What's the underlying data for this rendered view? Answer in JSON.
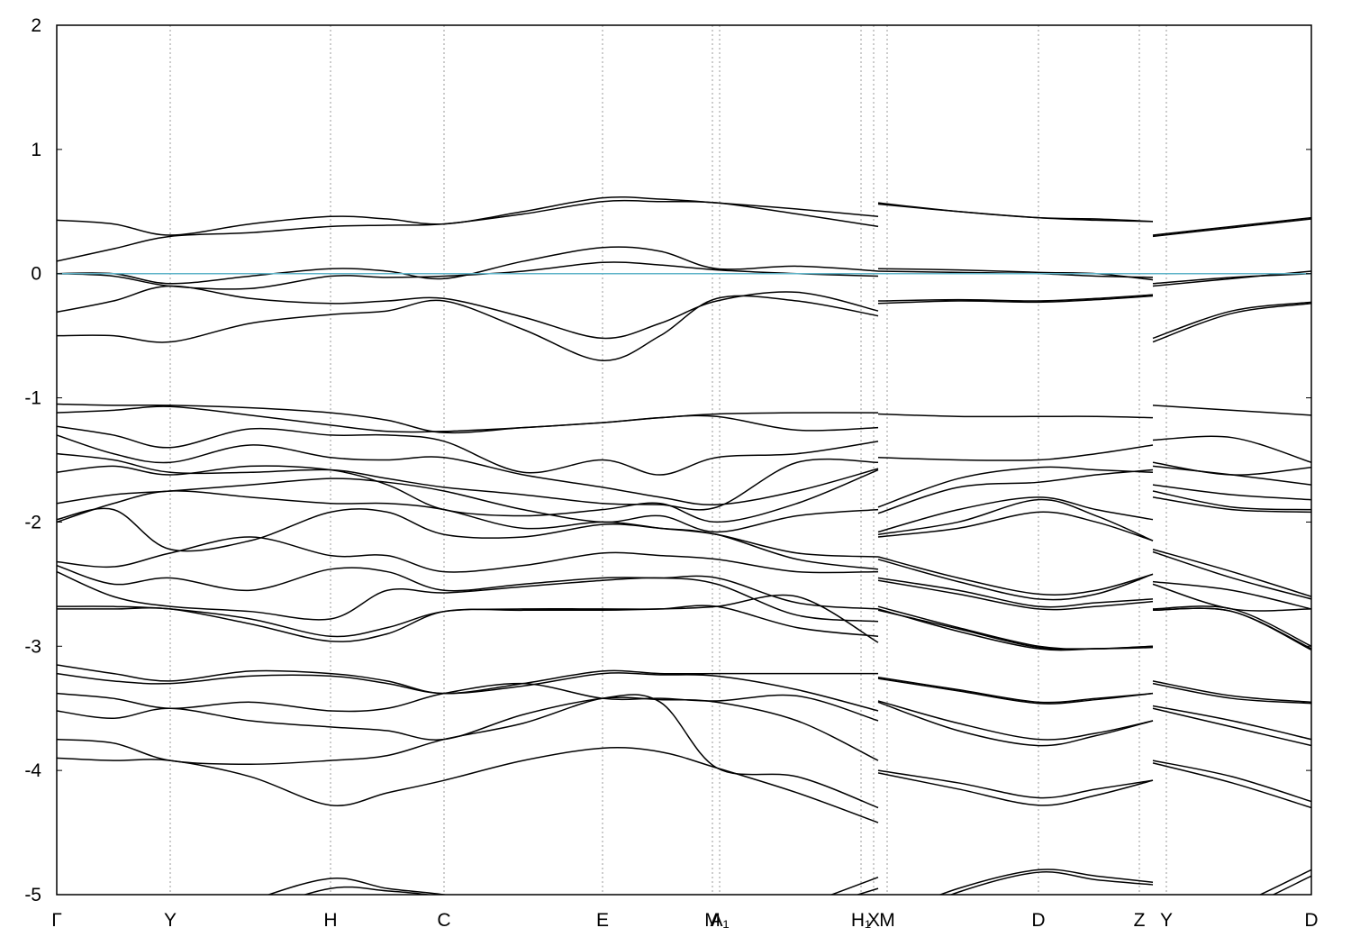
{
  "chart_data": {
    "type": "line",
    "xlim": [
      0,
      1393
    ],
    "ylim": [
      -5,
      2
    ],
    "yticks": [
      2,
      1,
      0,
      -1,
      -2,
      -3,
      -4,
      -5
    ],
    "xticks": [
      {
        "value": 0,
        "label": "Γ"
      },
      {
        "value": 126,
        "label": "Y"
      },
      {
        "value": 304,
        "label": "H"
      },
      {
        "value": 430,
        "label": "C"
      },
      {
        "value": 606,
        "label": "E"
      },
      {
        "value": 728,
        "label": "M"
      },
      {
        "value": 736,
        "label": "A₁"
      },
      {
        "value": 893,
        "label": "H₁"
      },
      {
        "value": 907,
        "label": "X"
      },
      {
        "value": 922,
        "label": "M"
      },
      {
        "value": 1090,
        "label": "D"
      },
      {
        "value": 1202,
        "label": "Z"
      },
      {
        "value": 1232,
        "label": "Y"
      },
      {
        "value": 1393,
        "label": "D"
      }
    ],
    "grid": true,
    "line_color": "#000000",
    "reference_line": {
      "value": 0,
      "color": "#5fb3c8"
    },
    "x": [
      0,
      63,
      126,
      215,
      304,
      367,
      430,
      518,
      606,
      670,
      733,
      822,
      912,
      912,
      912,
      1001,
      1090,
      1154,
      1217,
      1217,
      1217,
      1305,
      1393
    ],
    "series": [
      {
        "values": [
          0.43,
          0.4,
          0.31,
          0.4,
          0.46,
          0.44,
          0.4,
          0.5,
          0.61,
          0.6,
          0.57,
          0.52,
          0.46,
          null,
          0.57,
          0.5,
          0.45,
          0.44,
          0.42,
          null,
          0.31,
          0.38,
          0.45
        ]
      },
      {
        "values": [
          0.1,
          0.2,
          0.3,
          0.33,
          0.38,
          0.39,
          0.4,
          0.48,
          0.58,
          0.58,
          0.57,
          0.48,
          0.38,
          null,
          0.56,
          0.5,
          0.45,
          0.43,
          0.42,
          null,
          0.3,
          0.37,
          0.44
        ]
      },
      {
        "values": [
          0.0,
          0.0,
          -0.08,
          -0.02,
          0.04,
          0.02,
          -0.04,
          0.1,
          0.21,
          0.18,
          0.04,
          0.06,
          0.02,
          null,
          0.04,
          0.03,
          0.01,
          0.0,
          -0.05,
          null,
          -0.1,
          -0.04,
          0.02
        ]
      },
      {
        "values": [
          0.0,
          -0.02,
          -0.1,
          -0.12,
          -0.02,
          -0.03,
          -0.02,
          0.02,
          0.09,
          0.07,
          0.03,
          0.0,
          -0.02,
          null,
          0.02,
          0.01,
          0.0,
          -0.02,
          -0.03,
          null,
          -0.08,
          -0.03,
          0.0
        ]
      },
      {
        "values": [
          -0.31,
          -0.22,
          -0.1,
          -0.2,
          -0.24,
          -0.22,
          -0.2,
          -0.35,
          -0.52,
          -0.4,
          -0.22,
          -0.15,
          -0.3,
          null,
          -0.22,
          -0.21,
          -0.22,
          -0.2,
          -0.17,
          null,
          -0.52,
          -0.3,
          -0.23
        ]
      },
      {
        "values": [
          -0.5,
          -0.5,
          -0.55,
          -0.4,
          -0.33,
          -0.3,
          -0.22,
          -0.45,
          -0.7,
          -0.5,
          -0.2,
          -0.22,
          -0.34,
          null,
          -0.24,
          -0.22,
          -0.23,
          -0.21,
          -0.18,
          null,
          -0.55,
          -0.32,
          -0.24
        ]
      },
      {
        "values": [
          -1.05,
          -1.06,
          -1.06,
          -1.08,
          -1.12,
          -1.18,
          -1.28,
          -1.24,
          -1.2,
          -1.16,
          -1.13,
          -1.12,
          -1.12,
          null,
          -1.13,
          -1.15,
          -1.15,
          -1.15,
          -1.16,
          null,
          -1.06,
          -1.1,
          -1.14
        ]
      },
      {
        "values": [
          -1.12,
          -1.1,
          -1.07,
          -1.14,
          -1.22,
          -1.27,
          -1.27,
          -1.24,
          -1.2,
          -1.16,
          -1.15,
          -1.26,
          -1.24,
          null,
          -1.48,
          -1.5,
          -1.5,
          -1.45,
          -1.38,
          null,
          -1.34,
          -1.32,
          -1.52
        ]
      },
      {
        "values": [
          -1.23,
          -1.3,
          -1.4,
          -1.25,
          -1.3,
          -1.3,
          -1.35,
          -1.6,
          -1.5,
          -1.62,
          -1.48,
          -1.45,
          -1.35,
          null,
          -1.88,
          -1.65,
          -1.56,
          -1.58,
          -1.6,
          null,
          -1.52,
          -1.62,
          -1.56
        ]
      },
      {
        "values": [
          -1.3,
          -1.45,
          -1.52,
          -1.38,
          -1.48,
          -1.5,
          -1.48,
          -1.62,
          -1.72,
          -1.8,
          -1.86,
          -1.75,
          -1.57,
          null,
          -1.93,
          -1.72,
          -1.68,
          -1.62,
          -1.58,
          null,
          -1.55,
          -1.62,
          -1.7
        ]
      },
      {
        "values": [
          -1.45,
          -1.5,
          -1.6,
          -1.6,
          -1.58,
          -1.65,
          -1.72,
          -1.78,
          -1.85,
          -1.86,
          -1.88,
          -1.52,
          -1.52,
          null,
          -2.08,
          -1.9,
          -1.8,
          -1.9,
          -1.98,
          null,
          -1.7,
          -1.78,
          -1.82
        ]
      },
      {
        "values": [
          -1.6,
          -1.55,
          -1.62,
          -1.55,
          -1.58,
          -1.7,
          -1.9,
          -1.95,
          -1.9,
          -1.85,
          -2.0,
          -1.85,
          -1.58,
          null,
          -2.1,
          -2.0,
          -1.82,
          -1.95,
          -2.15,
          null,
          -1.75,
          -1.88,
          -1.9
        ]
      },
      {
        "values": [
          -1.85,
          -1.78,
          -1.75,
          -1.7,
          -1.65,
          -1.68,
          -1.75,
          -1.9,
          -2.0,
          -1.95,
          -2.08,
          -1.95,
          -1.9,
          null,
          -2.12,
          -2.05,
          -1.92,
          -2.0,
          -2.15,
          null,
          -1.8,
          -1.9,
          -1.92
        ]
      },
      {
        "values": [
          -2.0,
          -1.85,
          -1.75,
          -1.8,
          -1.85,
          -1.85,
          -1.9,
          -2.05,
          -2.0,
          -2.05,
          -2.1,
          -2.25,
          -2.28,
          null,
          -2.28,
          -2.45,
          -2.58,
          -2.55,
          -2.42,
          null,
          -2.22,
          -2.4,
          -2.6
        ]
      },
      {
        "values": [
          -1.98,
          -1.9,
          -2.22,
          -2.15,
          -1.92,
          -1.92,
          -2.1,
          -2.12,
          -2.02,
          -2.05,
          -2.1,
          -2.3,
          -2.38,
          null,
          -2.3,
          -2.48,
          -2.62,
          -2.58,
          -2.42,
          null,
          -2.24,
          -2.45,
          -2.62
        ]
      },
      {
        "values": [
          -2.32,
          -2.36,
          -2.25,
          -2.12,
          -2.27,
          -2.27,
          -2.4,
          -2.35,
          -2.25,
          -2.27,
          -2.3,
          -2.4,
          -2.4,
          null,
          -2.45,
          -2.55,
          -2.68,
          -2.65,
          -2.62,
          null,
          -2.48,
          -2.55,
          -2.7
        ]
      },
      {
        "values": [
          -2.35,
          -2.5,
          -2.45,
          -2.55,
          -2.38,
          -2.4,
          -2.55,
          -2.5,
          -2.45,
          -2.45,
          -2.45,
          -2.65,
          -2.7,
          null,
          -2.47,
          -2.58,
          -2.7,
          -2.68,
          -2.64,
          null,
          -2.5,
          -2.7,
          -2.7
        ]
      },
      {
        "values": [
          -2.4,
          -2.6,
          -2.68,
          -2.72,
          -2.78,
          -2.55,
          -2.57,
          -2.52,
          -2.47,
          -2.45,
          -2.5,
          -2.75,
          -2.8,
          null,
          -2.68,
          -2.85,
          -3.0,
          -3.02,
          -3.0,
          null,
          -2.7,
          -2.7,
          -3.0
        ]
      },
      {
        "values": [
          -2.68,
          -2.68,
          -2.7,
          -2.78,
          -2.92,
          -2.85,
          -2.72,
          -2.7,
          -2.7,
          -2.7,
          -2.68,
          -2.85,
          -2.92,
          null,
          -2.7,
          -2.88,
          -3.02,
          -3.02,
          -3.0,
          null,
          -2.71,
          -2.72,
          -3.02
        ]
      },
      {
        "values": [
          -2.7,
          -2.7,
          -2.7,
          -2.82,
          -2.96,
          -2.9,
          -2.72,
          -2.71,
          -2.71,
          -2.7,
          -2.68,
          -2.6,
          -2.97,
          null,
          -2.71,
          -2.86,
          -3.01,
          -3.02,
          -3.01,
          null,
          -2.71,
          -2.72,
          -3.03
        ]
      },
      {
        "values": [
          -3.15,
          -3.22,
          -3.28,
          -3.2,
          -3.22,
          -3.28,
          -3.38,
          -3.3,
          -3.2,
          -3.22,
          -3.22,
          -3.22,
          -3.22,
          null,
          -3.25,
          -3.35,
          -3.45,
          -3.42,
          -3.38,
          null,
          -3.28,
          -3.4,
          -3.45
        ]
      },
      {
        "values": [
          -3.22,
          -3.28,
          -3.3,
          -3.24,
          -3.24,
          -3.3,
          -3.38,
          -3.32,
          -3.22,
          -3.23,
          -3.24,
          -3.35,
          -3.52,
          null,
          -3.26,
          -3.36,
          -3.46,
          -3.43,
          -3.38,
          null,
          -3.3,
          -3.42,
          -3.46
        ]
      },
      {
        "values": [
          -3.38,
          -3.42,
          -3.5,
          -3.45,
          -3.52,
          -3.5,
          -3.38,
          -3.3,
          -3.42,
          -3.42,
          -3.44,
          -3.4,
          -3.6,
          null,
          -3.44,
          -3.62,
          -3.75,
          -3.7,
          -3.6,
          null,
          -3.48,
          -3.6,
          -3.75
        ]
      },
      {
        "values": [
          -3.52,
          -3.58,
          -3.5,
          -3.6,
          -3.65,
          -3.68,
          -3.75,
          -3.55,
          -3.42,
          -3.43,
          -3.45,
          -3.6,
          -3.92,
          null,
          -3.45,
          -3.68,
          -3.8,
          -3.72,
          -3.6,
          null,
          -3.5,
          -3.65,
          -3.8
        ]
      },
      {
        "values": [
          -3.75,
          -3.78,
          -3.92,
          -3.95,
          -3.92,
          -3.88,
          -3.75,
          -3.62,
          -3.42,
          -3.45,
          -3.98,
          -4.05,
          -4.3,
          null,
          -4.0,
          -4.1,
          -4.22,
          -4.15,
          -4.08,
          null,
          -3.92,
          -4.05,
          -4.25
        ]
      },
      {
        "values": [
          -3.9,
          -3.92,
          -3.92,
          -4.05,
          -4.28,
          -4.18,
          -4.08,
          -3.92,
          -3.82,
          -3.85,
          -3.98,
          -4.18,
          -4.42,
          null,
          -4.02,
          -4.15,
          -4.28,
          -4.2,
          -4.08,
          null,
          -3.94,
          -4.1,
          -4.3
        ]
      },
      {
        "values": [
          -5.5,
          -5.4,
          -5.3,
          -5.05,
          -4.87,
          -4.95,
          -5.0,
          -5.1,
          -5.3,
          -5.3,
          -5.3,
          -5.1,
          -4.86,
          null,
          -5.2,
          -4.95,
          -4.8,
          -4.85,
          -4.9,
          null,
          -5.3,
          -5.1,
          -4.8
        ]
      },
      {
        "values": [
          -5.6,
          -5.5,
          -5.4,
          -5.15,
          -4.95,
          -4.97,
          -5.02,
          -5.15,
          -5.35,
          -5.35,
          -5.35,
          -5.15,
          -4.95,
          null,
          -5.25,
          -4.98,
          -4.82,
          -4.88,
          -4.92,
          null,
          -5.35,
          -5.15,
          -4.85
        ]
      }
    ]
  }
}
